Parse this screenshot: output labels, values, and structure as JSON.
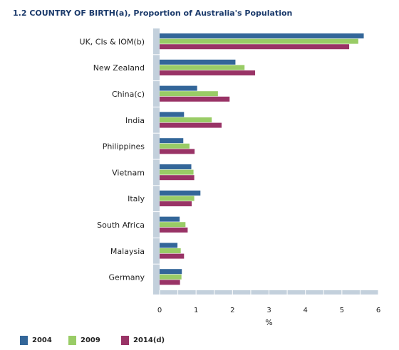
{
  "chart_data": {
    "type": "bar",
    "orientation": "horizontal",
    "title": "1.2 COUNTRY OF BIRTH(a), Proportion of Australia's Population",
    "xlabel": "%",
    "ylabel": "",
    "xlim": [
      0,
      6
    ],
    "xticks": [
      "0",
      "1",
      "2",
      "3",
      "4",
      "5",
      "6"
    ],
    "categories": [
      "UK, CIs & IOM(b)",
      "New Zealand",
      "China(c)",
      "India",
      "Philippines",
      "Vietnam",
      "Italy",
      "South Africa",
      "Malaysia",
      "Germany"
    ],
    "series": [
      {
        "name": "2004",
        "color": "#336699",
        "values": [
          5.6,
          2.08,
          1.03,
          0.67,
          0.65,
          0.87,
          1.12,
          0.55,
          0.49,
          0.61
        ]
      },
      {
        "name": "2009",
        "color": "#99cc66",
        "values": [
          5.45,
          2.33,
          1.6,
          1.43,
          0.82,
          0.93,
          0.95,
          0.71,
          0.58,
          0.6
        ]
      },
      {
        "name": "2014(d)",
        "color": "#993366",
        "values": [
          5.2,
          2.62,
          1.92,
          1.7,
          0.96,
          0.95,
          0.88,
          0.77,
          0.67,
          0.56
        ]
      }
    ],
    "legend_position": "bottom-left",
    "grid": false
  }
}
